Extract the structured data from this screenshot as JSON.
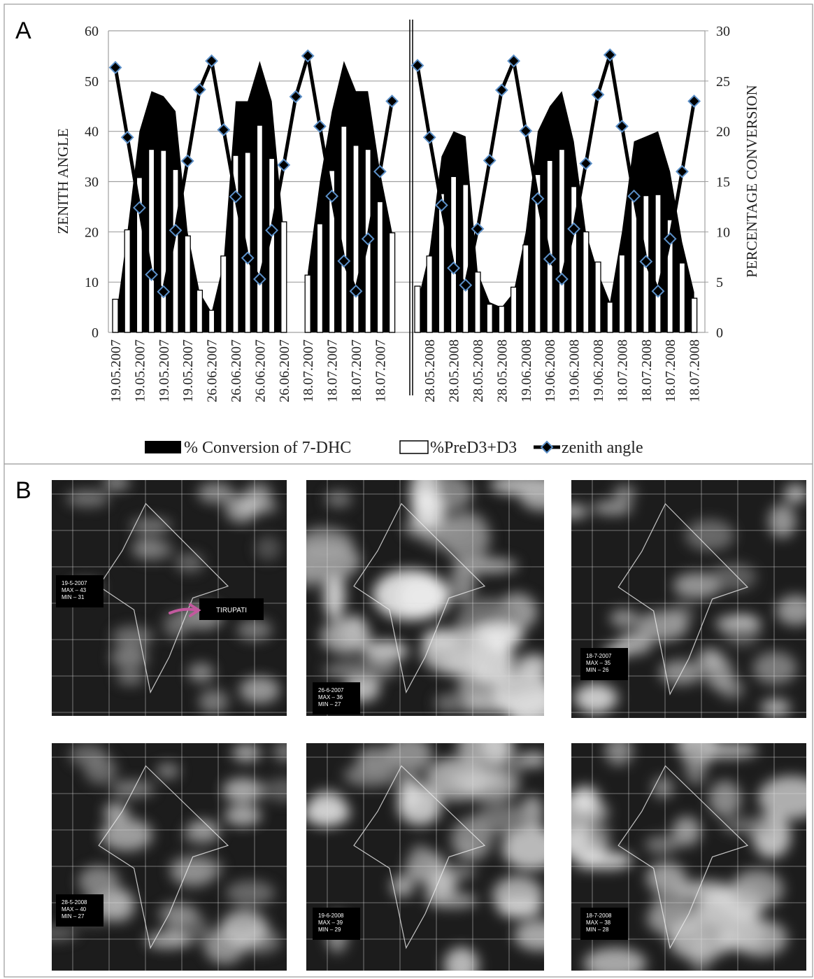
{
  "chart_data": {
    "type": "combo",
    "ylabel": "ZENITH ANGLE",
    "y2label": "PERCENTAGE CONVERSION",
    "ylim": [
      0,
      60
    ],
    "yticks": [
      0,
      10,
      20,
      30,
      40,
      50,
      60
    ],
    "y2lim": [
      0,
      30
    ],
    "y2ticks": [
      0,
      5,
      10,
      15,
      20,
      25,
      30
    ],
    "grid": true,
    "categories": [
      "19.05.2007",
      null,
      "19.05.2007",
      null,
      "19.05.2007",
      null,
      "19.05.2007",
      null,
      "26.06.2007",
      null,
      "26.06.2007",
      null,
      "26.06.2007",
      null,
      "26.06.2007",
      null,
      "18.07.2007",
      null,
      "18.07.2007",
      null,
      "18.07.2007",
      null,
      "18.07.2007",
      null,
      null,
      null,
      "28.05.2008",
      null,
      "28.05.2008",
      null,
      "28.05.2008",
      null,
      "28.05.2008",
      null,
      "19.06.2008",
      null,
      "19.06.2008",
      null,
      "19.06.2008",
      null,
      "19.06.2008",
      null,
      "18.07.2008",
      null,
      "18.07.2008",
      null,
      "18.07.2008",
      null,
      "18.07.2008"
    ],
    "series": [
      {
        "name": "% Conversion of 7-DHC",
        "type": "area",
        "axis": "y2",
        "color": "#000000",
        "values": [
          1,
          10,
          20,
          24,
          23.5,
          22,
          10,
          4,
          2,
          7,
          23,
          23,
          27,
          23,
          10,
          null,
          6,
          15,
          22,
          27,
          24,
          24,
          16,
          10,
          null,
          3,
          8,
          17.5,
          20,
          19.5,
          6,
          3,
          2.5,
          4,
          10,
          20,
          22.5,
          24,
          19,
          10,
          6,
          3,
          10,
          19,
          19.5,
          20,
          16,
          9,
          4
        ]
      },
      {
        "name": "%PreD3+D3",
        "type": "bar",
        "axis": "y2",
        "color": "#ffffff",
        "values": [
          3.3,
          10.2,
          15.4,
          18.2,
          18.1,
          16.2,
          9.6,
          4.2,
          2.2,
          7.6,
          17.6,
          17.9,
          20.6,
          17.3,
          11,
          null,
          5.7,
          10.8,
          16.1,
          20.5,
          18.6,
          18.2,
          13,
          9.9,
          null,
          4.6,
          7.6,
          13.8,
          15.5,
          14.7,
          6,
          2.8,
          2.6,
          4.5,
          8.7,
          15.7,
          17.1,
          18.2,
          14.5,
          10,
          7,
          3,
          7.7,
          13.5,
          13.6,
          13.7,
          11.2,
          6.9,
          3.4
        ]
      },
      {
        "name": "zenith angle",
        "type": "line",
        "color": "#000000",
        "marker_color": "#5b8fc7",
        "values": [
          52.7,
          38.8,
          24.8,
          11.5,
          8.1,
          20.3,
          34.1,
          48.3,
          54,
          40.3,
          27,
          14.8,
          10.6,
          20.3,
          33.3,
          46.9,
          55,
          41,
          27.1,
          14.2,
          8.2,
          18.6,
          32,
          46,
          null,
          53.1,
          38.8,
          25.3,
          12.8,
          9.4,
          20.6,
          34.2,
          48.2,
          54,
          40.1,
          26.6,
          14.6,
          10.6,
          20.6,
          33.6,
          47.3,
          55.2,
          41,
          27.1,
          14.1,
          8.2,
          18.6,
          32,
          46
        ]
      }
    ]
  },
  "panel_labels": [
    "A",
    "B"
  ],
  "location_label": "TIRUPATI",
  "satellite_images": [
    {
      "lines": [
        "19-5-2007",
        "MAX – 43",
        "MIN – 31"
      ]
    },
    {
      "lines": [
        "26-6-2007",
        "MAX – 36",
        "MIN – 27"
      ]
    },
    {
      "lines": [
        "18-7-2007",
        "MAX – 35",
        "MIN – 26"
      ]
    },
    {
      "lines": [
        "28-5-2008",
        "MAX – 40",
        "MIN – 27"
      ]
    },
    {
      "lines": [
        "19-6-2008",
        "MAX – 39",
        "MIN – 29"
      ]
    },
    {
      "lines": [
        "18-7-2008",
        "MAX – 38",
        "MIN – 28"
      ]
    }
  ]
}
